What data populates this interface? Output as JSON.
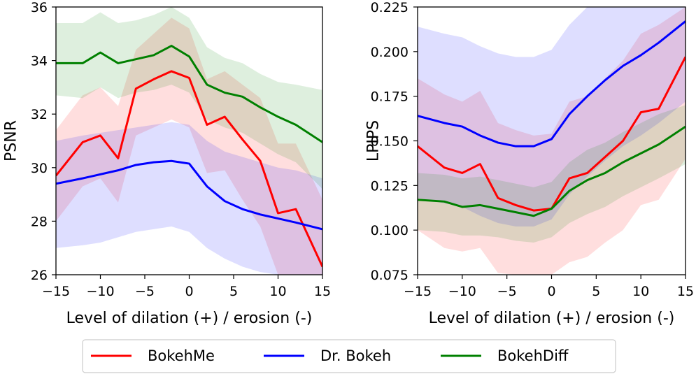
{
  "colors": {
    "BokehMe": "#ff0000",
    "Dr. Bokeh": "#0000ff",
    "BokehDiff": "#008000"
  },
  "legend": {
    "position": "bottom-center",
    "items": [
      "BokehMe",
      "Dr. Bokeh",
      "BokehDiff"
    ]
  },
  "chart_data": [
    {
      "type": "line",
      "title": "",
      "xlabel": "Level of dilation (+) / erosion (-)",
      "ylabel": "PSNR",
      "xlim": [
        -15,
        15
      ],
      "ylim": [
        26,
        36
      ],
      "xticks": [
        -15,
        -10,
        -5,
        0,
        5,
        10,
        15
      ],
      "xtick_labels": [
        "−15",
        "−10",
        "−5",
        "0",
        "5",
        "10",
        "15"
      ],
      "yticks": [
        26,
        28,
        30,
        32,
        34,
        36
      ],
      "ytick_labels": [
        "26",
        "28",
        "30",
        "32",
        "34",
        "36"
      ],
      "grid": false,
      "series": [
        {
          "name": "BokehMe",
          "x": [
            -15,
            -12,
            -10,
            -8,
            -6,
            -4,
            -2,
            0,
            2,
            4,
            6,
            8,
            10,
            12,
            15
          ],
          "y": [
            29.7,
            30.95,
            31.2,
            30.35,
            32.95,
            33.3,
            33.6,
            33.35,
            31.6,
            31.9,
            31.05,
            30.25,
            28.3,
            28.45,
            26.3
          ],
          "lower": [
            28.0,
            29.3,
            29.6,
            28.7,
            31.2,
            31.5,
            31.8,
            31.5,
            29.8,
            29.9,
            28.8,
            27.8,
            26.0,
            26.0,
            26.0
          ],
          "upper": [
            31.4,
            32.7,
            33.0,
            32.3,
            34.4,
            35.0,
            35.6,
            35.2,
            33.3,
            33.6,
            33.1,
            32.6,
            30.9,
            30.9,
            28.8
          ]
        },
        {
          "name": "Dr. Bokeh",
          "x": [
            -15,
            -12,
            -10,
            -8,
            -6,
            -4,
            -2,
            0,
            2,
            4,
            6,
            8,
            10,
            12,
            15
          ],
          "y": [
            29.4,
            29.6,
            29.75,
            29.9,
            30.1,
            30.2,
            30.25,
            30.15,
            29.3,
            28.75,
            28.45,
            28.25,
            28.1,
            27.95,
            27.7
          ],
          "lower": [
            27.0,
            27.1,
            27.2,
            27.4,
            27.6,
            27.7,
            27.8,
            27.6,
            27.0,
            26.6,
            26.3,
            26.1,
            26.0,
            26.0,
            26.0
          ],
          "upper": [
            31.0,
            31.2,
            31.3,
            31.4,
            31.5,
            31.6,
            31.7,
            31.6,
            31.0,
            30.6,
            30.4,
            30.2,
            30.0,
            29.9,
            29.6
          ]
        },
        {
          "name": "BokehDiff",
          "x": [
            -15,
            -12,
            -10,
            -8,
            -6,
            -4,
            -2,
            0,
            2,
            4,
            6,
            8,
            10,
            12,
            15
          ],
          "y": [
            33.9,
            33.9,
            34.3,
            33.9,
            34.05,
            34.2,
            34.55,
            34.15,
            33.1,
            32.8,
            32.65,
            32.25,
            31.9,
            31.6,
            30.95
          ],
          "lower": [
            32.7,
            32.6,
            33.0,
            32.6,
            32.8,
            32.9,
            33.1,
            32.8,
            31.8,
            31.5,
            31.3,
            30.9,
            30.5,
            30.2,
            29.2
          ],
          "upper": [
            35.4,
            35.4,
            35.8,
            35.4,
            35.5,
            35.7,
            36.0,
            35.6,
            34.5,
            34.1,
            33.9,
            33.5,
            33.2,
            33.1,
            32.9
          ]
        }
      ]
    },
    {
      "type": "line",
      "title": "",
      "xlabel": "Level of dilation (+) / erosion (-)",
      "ylabel": "LPIPS",
      "xlim": [
        -15,
        15
      ],
      "ylim": [
        0.075,
        0.225
      ],
      "xticks": [
        -15,
        -10,
        -5,
        0,
        5,
        10,
        15
      ],
      "xtick_labels": [
        "−15",
        "−10",
        "−5",
        "0",
        "5",
        "10",
        "15"
      ],
      "yticks": [
        0.075,
        0.1,
        0.125,
        0.15,
        0.175,
        0.2,
        0.225
      ],
      "ytick_labels": [
        "0.075",
        "0.100",
        "0.125",
        "0.150",
        "0.175",
        "0.200",
        "0.225"
      ],
      "grid": false,
      "series": [
        {
          "name": "BokehMe",
          "x": [
            -15,
            -12,
            -10,
            -8,
            -6,
            -4,
            -2,
            0,
            2,
            4,
            6,
            8,
            10,
            12,
            15
          ],
          "y": [
            0.147,
            0.135,
            0.132,
            0.137,
            0.118,
            0.114,
            0.111,
            0.112,
            0.129,
            0.132,
            0.141,
            0.15,
            0.166,
            0.168,
            0.197
          ],
          "lower": [
            0.1,
            0.09,
            0.088,
            0.09,
            0.076,
            0.075,
            0.075,
            0.075,
            0.082,
            0.085,
            0.093,
            0.1,
            0.114,
            0.117,
            0.14
          ],
          "upper": [
            0.185,
            0.176,
            0.172,
            0.178,
            0.16,
            0.156,
            0.153,
            0.154,
            0.172,
            0.175,
            0.185,
            0.195,
            0.21,
            0.215,
            0.225
          ]
        },
        {
          "name": "Dr. Bokeh",
          "x": [
            -15,
            -12,
            -10,
            -8,
            -6,
            -4,
            -2,
            0,
            2,
            4,
            6,
            8,
            10,
            12,
            15
          ],
          "y": [
            0.164,
            0.16,
            0.158,
            0.153,
            0.149,
            0.147,
            0.147,
            0.151,
            0.165,
            0.175,
            0.184,
            0.192,
            0.198,
            0.205,
            0.217
          ],
          "lower": [
            0.118,
            0.115,
            0.113,
            0.108,
            0.104,
            0.102,
            0.102,
            0.106,
            0.12,
            0.13,
            0.139,
            0.147,
            0.153,
            0.16,
            0.172
          ],
          "upper": [
            0.214,
            0.21,
            0.208,
            0.203,
            0.199,
            0.197,
            0.197,
            0.201,
            0.215,
            0.225,
            0.225,
            0.225,
            0.225,
            0.225,
            0.225
          ]
        },
        {
          "name": "BokehDiff",
          "x": [
            -15,
            -12,
            -10,
            -8,
            -6,
            -4,
            -2,
            0,
            2,
            4,
            6,
            8,
            10,
            12,
            15
          ],
          "y": [
            0.117,
            0.116,
            0.113,
            0.114,
            0.112,
            0.11,
            0.108,
            0.112,
            0.122,
            0.128,
            0.132,
            0.138,
            0.143,
            0.148,
            0.158
          ],
          "lower": [
            0.1,
            0.099,
            0.097,
            0.097,
            0.096,
            0.094,
            0.093,
            0.096,
            0.104,
            0.109,
            0.113,
            0.119,
            0.124,
            0.129,
            0.137
          ],
          "upper": [
            0.132,
            0.131,
            0.129,
            0.13,
            0.128,
            0.126,
            0.124,
            0.127,
            0.138,
            0.145,
            0.149,
            0.155,
            0.16,
            0.165,
            0.17
          ]
        }
      ]
    }
  ]
}
